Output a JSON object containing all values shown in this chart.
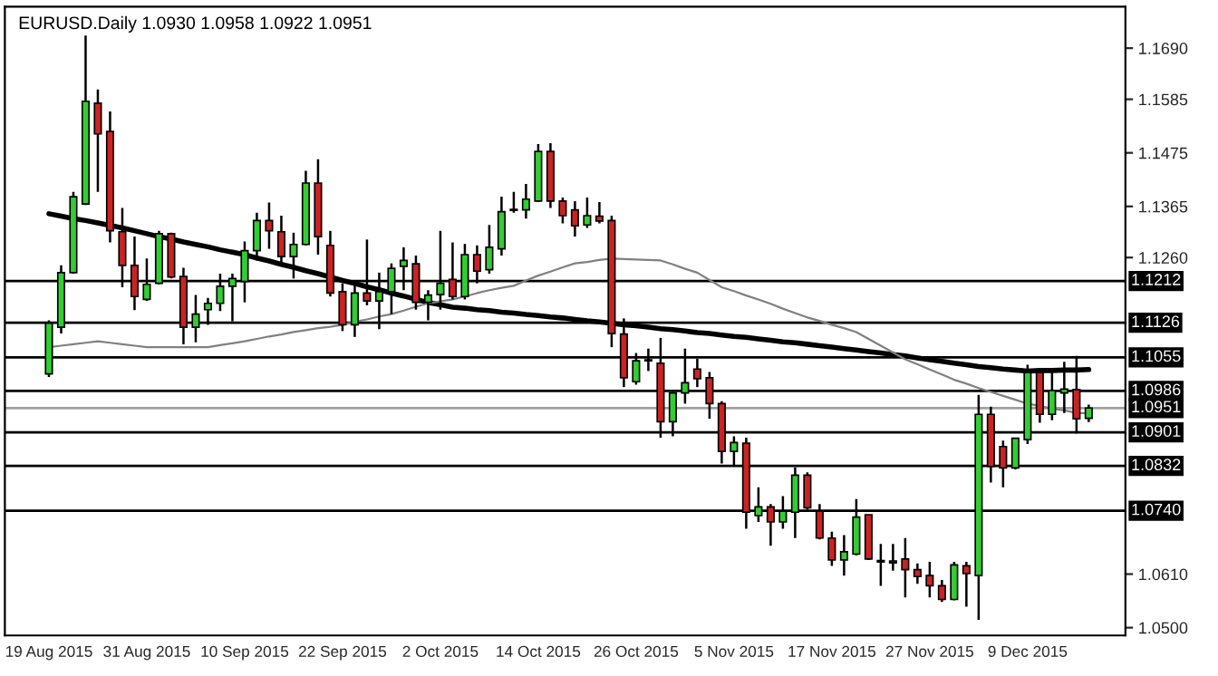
{
  "chart_data": {
    "type": "candlestick",
    "title": "EURUSD.Daily 1.0930 1.0958 1.0922 1.0951",
    "categories": [
      "19 Aug 2015",
      null,
      null,
      null,
      null,
      null,
      null,
      null,
      "31 Aug 2015",
      null,
      null,
      null,
      null,
      null,
      null,
      null,
      "10 Sep 2015",
      null,
      null,
      null,
      null,
      null,
      null,
      null,
      "22 Sep 2015",
      null,
      null,
      null,
      null,
      null,
      null,
      null,
      "2 Oct 2015",
      null,
      null,
      null,
      null,
      null,
      null,
      null,
      "14 Oct 2015",
      null,
      null,
      null,
      null,
      null,
      null,
      null,
      "26 Oct 2015",
      null,
      null,
      null,
      null,
      null,
      null,
      null,
      "5 Nov 2015",
      null,
      null,
      null,
      null,
      null,
      null,
      null,
      "17 Nov 2015",
      null,
      null,
      null,
      null,
      null,
      null,
      null,
      "27 Nov 2015",
      null,
      null,
      null,
      null,
      null,
      null,
      null,
      "9 Dec 2015",
      null,
      null,
      null,
      null,
      null
    ],
    "ohlc": [
      [
        1.1021,
        1.1131,
        1.1015,
        1.1125
      ],
      [
        1.1117,
        1.1244,
        1.1104,
        1.1229
      ],
      [
        1.1229,
        1.1395,
        1.1227,
        1.1385
      ],
      [
        1.137,
        1.1716,
        1.1368,
        1.1581
      ],
      [
        1.1577,
        1.1605,
        1.1395,
        1.1514
      ],
      [
        1.1519,
        1.156,
        1.1291,
        1.1315
      ],
      [
        1.1313,
        1.1362,
        1.1199,
        1.1244
      ],
      [
        1.1244,
        1.1303,
        1.1152,
        1.118
      ],
      [
        1.1174,
        1.1258,
        1.1171,
        1.1205
      ],
      [
        1.1207,
        1.1315,
        1.1205,
        1.1309
      ],
      [
        1.1309,
        1.1311,
        1.1217,
        1.122
      ],
      [
        1.1221,
        1.1239,
        1.1082,
        1.1117
      ],
      [
        1.1117,
        1.1183,
        1.1086,
        1.1144
      ],
      [
        1.1153,
        1.1177,
        1.1122,
        1.1166
      ],
      [
        1.1166,
        1.1227,
        1.115,
        1.1201
      ],
      [
        1.1201,
        1.1227,
        1.1129,
        1.1217
      ],
      [
        1.1211,
        1.1293,
        1.1168,
        1.1274
      ],
      [
        1.1274,
        1.1352,
        1.1254,
        1.1336
      ],
      [
        1.1336,
        1.1373,
        1.1278,
        1.1315
      ],
      [
        1.1313,
        1.1346,
        1.1242,
        1.1262
      ],
      [
        1.1262,
        1.1311,
        1.1217,
        1.1287
      ],
      [
        1.1287,
        1.1438,
        1.1285,
        1.1413
      ],
      [
        1.1413,
        1.1462,
        1.1266,
        1.1303
      ],
      [
        1.1285,
        1.1315,
        1.118,
        1.1187
      ],
      [
        1.119,
        1.1207,
        1.1109,
        1.1122
      ],
      [
        1.1122,
        1.1207,
        1.1097,
        1.1187
      ],
      [
        1.1187,
        1.1297,
        1.1162,
        1.1171
      ],
      [
        1.1171,
        1.1229,
        1.1113,
        1.119
      ],
      [
        1.119,
        1.1248,
        1.1144,
        1.1238
      ],
      [
        1.1242,
        1.1281,
        1.1193,
        1.1254
      ],
      [
        1.1247,
        1.1264,
        1.1153,
        1.1168
      ],
      [
        1.1168,
        1.1193,
        1.1131,
        1.1183
      ],
      [
        1.1184,
        1.1315,
        1.1153,
        1.1207
      ],
      [
        1.1215,
        1.1291,
        1.1174,
        1.118
      ],
      [
        1.118,
        1.1288,
        1.1174,
        1.1266
      ],
      [
        1.1266,
        1.1285,
        1.1207,
        1.1232
      ],
      [
        1.1235,
        1.1327,
        1.1227,
        1.1281
      ],
      [
        1.1278,
        1.1385,
        1.1264,
        1.1354
      ],
      [
        1.1357,
        1.1395,
        1.1352,
        1.1359
      ],
      [
        1.1358,
        1.1411,
        1.134,
        1.138
      ],
      [
        1.1376,
        1.1493,
        1.1374,
        1.1478
      ],
      [
        1.1478,
        1.1495,
        1.1362,
        1.1376
      ],
      [
        1.1376,
        1.1383,
        1.133,
        1.1346
      ],
      [
        1.1358,
        1.1376,
        1.1303,
        1.1325
      ],
      [
        1.1327,
        1.1383,
        1.1321,
        1.1346
      ],
      [
        1.1345,
        1.1374,
        1.133,
        1.1335
      ],
      [
        1.1336,
        1.1346,
        1.1076,
        1.1104
      ],
      [
        1.1103,
        1.1135,
        1.0994,
        1.1013
      ],
      [
        1.1005,
        1.1064,
        1.0999,
        1.1048
      ],
      [
        1.1048,
        1.1073,
        1.1027,
        1.105
      ],
      [
        1.1043,
        1.1095,
        1.089,
        1.0923
      ],
      [
        1.0923,
        1.0984,
        1.0893,
        1.0982
      ],
      [
        1.0982,
        1.1073,
        1.096,
        1.1003
      ],
      [
        1.1031,
        1.1052,
        1.0994,
        1.1011
      ],
      [
        1.1013,
        1.1025,
        1.0929,
        1.096
      ],
      [
        1.096,
        1.0965,
        1.0837,
        1.0862
      ],
      [
        1.0862,
        1.0893,
        1.0831,
        1.088
      ],
      [
        1.0879,
        1.089,
        1.0703,
        1.0737
      ],
      [
        1.073,
        1.0788,
        1.0717,
        1.0748
      ],
      [
        1.0748,
        1.0754,
        1.0668,
        1.0717
      ],
      [
        1.0717,
        1.077,
        1.0703,
        1.0739
      ],
      [
        1.0737,
        1.0829,
        1.0684,
        1.0813
      ],
      [
        1.0813,
        1.0819,
        1.0742,
        1.0746
      ],
      [
        1.0739,
        1.0754,
        1.0681,
        1.0684
      ],
      [
        1.0684,
        1.0697,
        1.0627,
        1.0639
      ],
      [
        1.0639,
        1.069,
        1.0607,
        1.0656
      ],
      [
        1.0651,
        1.0764,
        1.0648,
        1.0727
      ],
      [
        1.0732,
        1.0732,
        1.0639,
        1.0641
      ],
      [
        1.0638,
        1.0672,
        1.0586,
        1.0635
      ],
      [
        1.0637,
        1.0672,
        1.0617,
        1.0633
      ],
      [
        1.0641,
        1.0684,
        1.0562,
        1.0619
      ],
      [
        1.0619,
        1.0632,
        1.059,
        1.0605
      ],
      [
        1.0607,
        1.0635,
        1.0562,
        1.0586
      ],
      [
        1.0586,
        1.0598,
        1.0553,
        1.0558
      ],
      [
        1.0558,
        1.0635,
        1.0556,
        1.0629
      ],
      [
        1.0627,
        1.0635,
        1.0543,
        1.0611
      ],
      [
        1.0607,
        1.0978,
        1.0516,
        1.0938
      ],
      [
        1.0938,
        1.0954,
        1.0798,
        1.0831
      ],
      [
        1.0872,
        1.0884,
        1.0788,
        1.0828
      ],
      [
        1.0828,
        1.0889,
        1.0825,
        1.0889
      ],
      [
        1.0886,
        1.104,
        1.0877,
        1.1024
      ],
      [
        1.1024,
        1.1027,
        1.0921,
        1.0938
      ],
      [
        1.0938,
        1.1027,
        1.0926,
        1.0987
      ],
      [
        1.0982,
        1.1046,
        1.0941,
        1.099
      ],
      [
        1.0989,
        1.1058,
        1.0899,
        1.0929
      ],
      [
        1.093,
        1.0958,
        1.0922,
        1.0951
      ]
    ],
    "colors": [
      "#32cd32",
      "#32cd32",
      "#32cd32",
      "#32cd32",
      "#cc2222",
      "#cc2222",
      "#cc2222",
      "#cc2222",
      "#32cd32",
      "#32cd32",
      "#cc2222",
      "#cc2222",
      "#32cd32",
      "#32cd32",
      "#32cd32",
      "#32cd32",
      "#32cd32",
      "#32cd32",
      "#cc2222",
      "#cc2222",
      "#32cd32",
      "#32cd32",
      "#cc2222",
      "#cc2222",
      "#cc2222",
      "#32cd32",
      "#cc2222",
      "#32cd32",
      "#32cd32",
      "#32cd32",
      "#cc2222",
      "#32cd32",
      "#32cd32",
      "#cc2222",
      "#32cd32",
      "#cc2222",
      "#32cd32",
      "#32cd32",
      "#32cd32",
      "#32cd32",
      "#32cd32",
      "#cc2222",
      "#cc2222",
      "#cc2222",
      "#32cd32",
      "#cc2222",
      "#cc2222",
      "#cc2222",
      "#32cd32",
      "#32cd32",
      "#cc2222",
      "#32cd32",
      "#32cd32",
      "#cc2222",
      "#cc2222",
      "#cc2222",
      "#32cd32",
      "#cc2222",
      "#32cd32",
      "#cc2222",
      "#32cd32",
      "#32cd32",
      "#cc2222",
      "#cc2222",
      "#cc2222",
      "#32cd32",
      "#32cd32",
      "#cc2222",
      "#cc2222",
      "#cc2222",
      "#cc2222",
      "#cc2222",
      "#cc2222",
      "#cc2222",
      "#32cd32",
      "#cc2222",
      "#32cd32",
      "#cc2222",
      "#cc2222",
      "#32cd32",
      "#32cd32",
      "#cc2222",
      "#32cd32",
      "#32cd32",
      "#cc2222",
      "#32cd32"
    ],
    "series": [
      {
        "type": "line",
        "color": "#000000",
        "values": [
          1.135,
          1.1345,
          1.134,
          1.1336,
          1.1331,
          1.1326,
          1.1321,
          1.1315,
          1.1309,
          1.1303,
          1.1298,
          1.1292,
          1.1287,
          1.1282,
          1.1276,
          1.1271,
          1.1266,
          1.1259,
          1.1253,
          1.1246,
          1.124,
          1.1233,
          1.1227,
          1.122,
          1.1213,
          1.1207,
          1.12,
          1.1194,
          1.1187,
          1.1181,
          1.1174,
          1.1168,
          1.1163,
          1.1158,
          1.1156,
          1.1153,
          1.1151,
          1.1148,
          1.1146,
          1.1143,
          1.1141,
          1.1138,
          1.1136,
          1.1133,
          1.113,
          1.1128,
          1.1125,
          1.1122,
          1.112,
          1.1117,
          1.1114,
          1.1112,
          1.1109,
          1.1106,
          1.1104,
          1.1101,
          1.1098,
          1.1096,
          1.1093,
          1.109,
          1.1087,
          1.1085,
          1.1082,
          1.1079,
          1.1076,
          1.1073,
          1.107,
          1.1067,
          1.1064,
          1.1061,
          1.1058,
          1.1054,
          1.105,
          1.1047,
          1.1043,
          1.104,
          1.1036,
          1.1034,
          1.1031,
          1.1029,
          1.1027,
          1.1028,
          1.1028,
          1.1029,
          1.1029,
          1.103
        ]
      },
      {
        "type": "line",
        "color": "#808080",
        "values": [
          1.1076,
          1.1079,
          1.1082,
          1.1085,
          1.1088,
          1.1085,
          1.1082,
          1.1079,
          1.1076,
          1.1076,
          1.1076,
          1.1076,
          1.1076,
          1.1076,
          1.108,
          1.1084,
          1.1088,
          1.1093,
          1.1098,
          1.1102,
          1.1107,
          1.1111,
          1.1115,
          1.1118,
          1.1122,
          1.1128,
          1.1133,
          1.1139,
          1.1144,
          1.1151,
          1.1159,
          1.1166,
          1.117,
          1.1174,
          1.118,
          1.1187,
          1.1193,
          1.1198,
          1.1202,
          1.1213,
          1.1223,
          1.1231,
          1.124,
          1.1248,
          1.1251,
          1.1255,
          1.1258,
          1.1257,
          1.1256,
          1.1255,
          1.1254,
          1.1246,
          1.1237,
          1.1229,
          1.1214,
          1.1199,
          1.1191,
          1.1182,
          1.1174,
          1.1165,
          1.1155,
          1.1146,
          1.1137,
          1.113,
          1.1122,
          1.1115,
          1.1107,
          1.1093,
          1.1079,
          1.1065,
          1.1051,
          1.1041,
          1.103,
          1.102,
          1.1009,
          1.1001,
          1.0992,
          1.0984,
          1.0976,
          1.0968,
          1.096,
          1.0955,
          1.095,
          1.0946,
          1.0941,
          1.094
        ]
      }
    ],
    "ref_lines": [
      {
        "axis": "y",
        "value": 1.1212,
        "label": "1.1212",
        "color": "#000000"
      },
      {
        "axis": "y",
        "value": 1.1126,
        "label": "1.1126",
        "color": "#000000"
      },
      {
        "axis": "y",
        "value": 1.1055,
        "label": "1.1055",
        "color": "#000000"
      },
      {
        "axis": "y",
        "value": 1.0986,
        "label": "1.0986",
        "color": "#000000"
      },
      {
        "axis": "y",
        "value": 1.0951,
        "label": "1.0951",
        "color": "#a0a0a0"
      },
      {
        "axis": "y",
        "value": 1.0901,
        "label": "1.0901",
        "color": "#000000"
      },
      {
        "axis": "y",
        "value": 1.0832,
        "label": "1.0832",
        "color": "#000000"
      },
      {
        "axis": "y",
        "value": 1.074,
        "label": "1.0740",
        "color": "#000000"
      }
    ],
    "ylim": [
      1.0484,
      1.1775
    ],
    "yticks": [
      {
        "value": 1.169,
        "label": "1.1690"
      },
      1.1585,
      1.1475,
      1.1365,
      {
        "value": 1.126,
        "label": "1.1260"
      },
      {
        "value": 1.061,
        "label": "1.0610"
      },
      {
        "value": 1.05,
        "label": "1.0500"
      }
    ],
    "grid": false,
    "legend": false
  }
}
